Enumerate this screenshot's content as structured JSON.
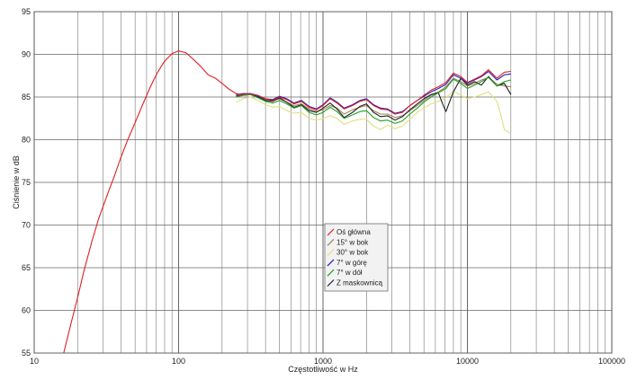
{
  "chart_data": {
    "type": "line",
    "title": "",
    "xlabel": "Częstotliwość w Hz",
    "ylabel": "Ciśnienie w dB",
    "x_scale": "log",
    "xlim": [
      10,
      100000
    ],
    "ylim": [
      55,
      95
    ],
    "x_ticks": [
      10,
      100,
      1000,
      10000,
      100000
    ],
    "x_tick_labels": [
      "10",
      "100",
      "1000",
      "10000",
      "100000"
    ],
    "y_ticks": [
      55,
      60,
      65,
      70,
      75,
      80,
      85,
      90,
      95
    ],
    "grid": true,
    "legend_position": "center",
    "series": [
      {
        "name": "Oś główna",
        "color": "#e02020",
        "x": [
          16,
          18,
          20,
          22,
          25,
          28,
          32,
          36,
          40,
          45,
          50,
          56,
          63,
          71,
          80,
          90,
          100,
          112,
          125,
          140,
          160,
          180,
          200,
          224,
          250,
          280,
          315,
          355,
          400,
          450,
          500,
          560,
          630,
          710,
          800,
          900,
          1000,
          1120,
          1250,
          1400,
          1600,
          1800,
          2000,
          2240,
          2500,
          2800,
          3150,
          3550,
          4000,
          4500,
          5000,
          5600,
          6300,
          7100,
          8000,
          9000,
          10000,
          11200,
          12500,
          14000,
          16000,
          18000,
          20000
        ],
        "y": [
          55,
          58.5,
          61.5,
          64.5,
          68,
          70.8,
          73.5,
          75.8,
          78,
          80.2,
          82,
          84,
          86,
          87.8,
          89.2,
          90.1,
          90.4,
          90.2,
          89.5,
          88.7,
          87.6,
          87.2,
          86.6,
          85.9,
          85.4,
          85.3,
          85.4,
          85.2,
          84.8,
          84.6,
          85,
          84.7,
          84.2,
          84.5,
          83.8,
          83.5,
          84,
          84.8,
          84.3,
          83.6,
          84,
          84.5,
          84.7,
          84,
          83.6,
          83.5,
          83,
          83.2,
          84,
          84.6,
          85.2,
          85.8,
          86.2,
          86.7,
          87.8,
          87.4,
          86.7,
          87.1,
          87.5,
          88.2,
          87.2,
          87.9,
          88
        ]
      },
      {
        "name": "15° w bok",
        "color": "#a08060",
        "x": [
          250,
          280,
          315,
          355,
          400,
          450,
          500,
          560,
          630,
          710,
          800,
          900,
          1000,
          1120,
          1250,
          1400,
          1600,
          1800,
          2000,
          2240,
          2500,
          2800,
          3150,
          3550,
          4000,
          4500,
          5000,
          5600,
          6300,
          7100,
          8000,
          9000,
          10000,
          11200,
          12500,
          14000,
          16000,
          18000,
          20000
        ],
        "y": [
          85.2,
          85.3,
          85.3,
          85,
          84.7,
          84.6,
          84.8,
          84.4,
          84,
          84.2,
          83.6,
          83.3,
          83.5,
          84,
          83.7,
          83,
          83.5,
          83.8,
          84,
          83.4,
          83,
          83,
          82.6,
          82.8,
          83.4,
          84,
          84.6,
          85.2,
          85.6,
          86.2,
          87.2,
          86.8,
          86.3,
          86.6,
          87,
          87.3,
          86.5,
          86.3,
          86.2
        ]
      },
      {
        "name": "30° w bok",
        "color": "#e0e080",
        "x": [
          250,
          280,
          315,
          355,
          400,
          450,
          500,
          560,
          630,
          710,
          800,
          900,
          1000,
          1120,
          1250,
          1400,
          1600,
          1800,
          2000,
          2240,
          2500,
          2800,
          3150,
          3550,
          4000,
          4500,
          5000,
          5600,
          6300,
          7100,
          8000,
          9000,
          10000,
          11200,
          12500,
          14000,
          16000,
          17000,
          18000,
          20000
        ],
        "y": [
          84.4,
          84.8,
          85,
          84.6,
          84.1,
          83.8,
          83.9,
          83.4,
          83.1,
          83.2,
          82.5,
          82.3,
          82.5,
          82.8,
          82.5,
          81.8,
          82.2,
          82.4,
          82.4,
          81.6,
          81.2,
          81.7,
          81.3,
          81.6,
          82.4,
          83.2,
          83.7,
          84.2,
          84.5,
          84.9,
          85.7,
          85.2,
          84.8,
          85,
          85.3,
          85.6,
          84.5,
          83,
          81.2,
          80.7
        ]
      },
      {
        "name": "7° w górę",
        "color": "#2020c0",
        "x": [
          250,
          280,
          315,
          355,
          400,
          450,
          500,
          560,
          630,
          710,
          800,
          900,
          1000,
          1120,
          1250,
          1400,
          1600,
          1800,
          2000,
          2240,
          2500,
          2800,
          3150,
          3550,
          4000,
          4500,
          5000,
          5600,
          6300,
          7100,
          8000,
          9000,
          10000,
          11200,
          12500,
          14000,
          16000,
          18000,
          20000
        ],
        "y": [
          85.3,
          85.4,
          85.4,
          85.1,
          84.8,
          84.7,
          85.1,
          84.8,
          84.3,
          84.6,
          83.9,
          83.6,
          84.1,
          84.9,
          84.4,
          83.7,
          84.1,
          84.6,
          84.8,
          84.1,
          83.7,
          83.6,
          83.1,
          83.3,
          84,
          84.6,
          85.1,
          85.6,
          86,
          86.5,
          87.6,
          87.2,
          86.6,
          87,
          87.4,
          88,
          87,
          87.6,
          87.7
        ]
      },
      {
        "name": "7° w dół",
        "color": "#20a020",
        "x": [
          250,
          280,
          315,
          355,
          400,
          450,
          500,
          560,
          630,
          710,
          800,
          900,
          1000,
          1120,
          1250,
          1400,
          1600,
          1800,
          2000,
          2240,
          2500,
          2800,
          3150,
          3550,
          4000,
          4500,
          5000,
          5600,
          6300,
          7100,
          8000,
          9000,
          10000,
          11200,
          12500,
          14000,
          16000,
          18000,
          20000
        ],
        "y": [
          85,
          85.2,
          85.3,
          84.9,
          84.5,
          84.3,
          84.6,
          84.2,
          83.7,
          84,
          83.2,
          82.9,
          83.2,
          83.8,
          83.3,
          82.5,
          82.9,
          83.3,
          83.4,
          82.6,
          82.2,
          82.3,
          81.9,
          82.2,
          83,
          83.7,
          84.4,
          85,
          85.5,
          86,
          87.1,
          86.6,
          86,
          86.4,
          86.8,
          87.3,
          86.3,
          86.8,
          87
        ]
      },
      {
        "name": "Z maskownicą",
        "color": "#202020",
        "x": [
          250,
          280,
          315,
          355,
          400,
          450,
          500,
          560,
          630,
          710,
          800,
          900,
          1000,
          1120,
          1250,
          1400,
          1600,
          1800,
          2000,
          2240,
          2500,
          2800,
          3150,
          3550,
          4000,
          4500,
          5000,
          5600,
          6300,
          6700,
          7100,
          8000,
          9000,
          10000,
          11200,
          12500,
          14000,
          16000,
          18000,
          20000
        ],
        "y": [
          85.1,
          85.2,
          85.3,
          85,
          84.6,
          84.5,
          84.9,
          84.4,
          83.8,
          84.1,
          83.4,
          83.2,
          83.7,
          84.3,
          83.6,
          82.6,
          83.2,
          83.9,
          84.2,
          83.2,
          82.7,
          82.8,
          82.3,
          82.7,
          83.5,
          84.2,
          84.8,
          85.3,
          85.5,
          84.3,
          83.3,
          85.6,
          87.2,
          86.4,
          86.8,
          86.4,
          87.4,
          86.3,
          86.6,
          85.3
        ]
      }
    ]
  }
}
